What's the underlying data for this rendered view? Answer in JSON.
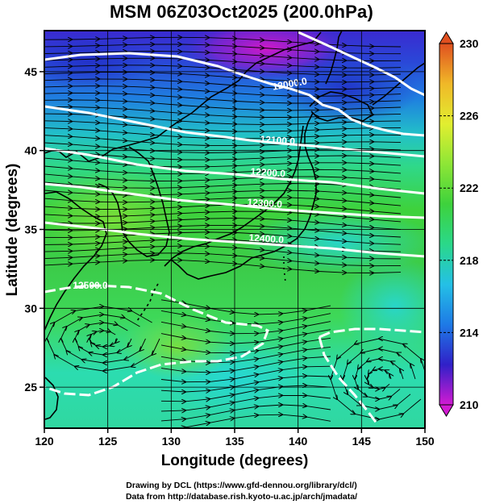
{
  "title": "MSM 06Z03Oct2025 (200.0hPa)",
  "x_axis": {
    "label": "Longitude (degrees)",
    "ticks": [
      120,
      125,
      130,
      135,
      140,
      145,
      150
    ],
    "tick_labels": [
      "120",
      "125",
      "130",
      "135",
      "140",
      "145",
      "150"
    ],
    "range": [
      120,
      150
    ]
  },
  "y_axis": {
    "label": "Latitude (degrees)",
    "ticks": [
      25,
      30,
      35,
      40,
      45
    ],
    "tick_labels": [
      "25",
      "30",
      "35",
      "40",
      "45"
    ],
    "range": [
      22.4,
      47.6
    ]
  },
  "colorbar": {
    "min": 210,
    "max": 230,
    "tick_labels": [
      "230",
      "226",
      "222",
      "218",
      "214",
      "210"
    ],
    "tick_values": [
      230,
      226,
      222,
      218,
      214,
      210
    ],
    "colors": [
      "#d21bd2",
      "#3020c8",
      "#1e7ae6",
      "#24c0e6",
      "#2ad88a",
      "#3ed23c",
      "#8ee636",
      "#e2ee30",
      "#f0b828",
      "#e05020"
    ]
  },
  "contours": [
    {
      "value": 12000,
      "label": "12000.0"
    },
    {
      "value": 12100,
      "label": "12100.0"
    },
    {
      "value": 12200,
      "label": "12200.0"
    },
    {
      "value": 12300,
      "label": "12300.0"
    },
    {
      "value": 12400,
      "label": "12400.0"
    },
    {
      "value": 12500,
      "label": "12500.0"
    }
  ],
  "credits": {
    "line1": "Drawing by DCL (https://www.gfd-dennou.org/library/dcl/)",
    "line2": "Data from http://database.rish.kyoto-u.ac.jp/arch/jmadata/"
  },
  "colors": {
    "contour": "#ffffff",
    "streamline": "#000000",
    "coast": "#000000",
    "grid": "#000000"
  }
}
